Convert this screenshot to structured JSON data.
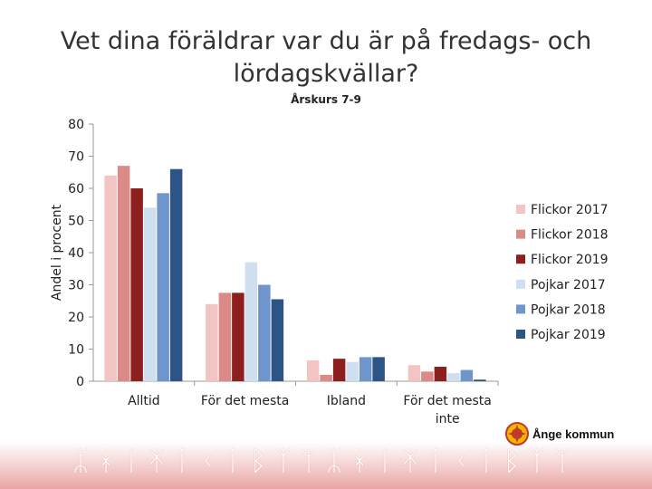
{
  "chart_data": {
    "type": "bar",
    "title": "Vet dina föräldrar var du är på fredags- och lördagskvällar?",
    "subtitle": "Årskurs 7-9",
    "ylabel": "Andel i procent",
    "xlabel": "",
    "ylim": [
      0,
      80
    ],
    "yticks": [
      0,
      10,
      20,
      30,
      40,
      50,
      60,
      70,
      80
    ],
    "categories": [
      "Alltid",
      "För det mesta",
      "Ibland",
      "För det mesta inte"
    ],
    "series": [
      {
        "name": "Flickor 2017",
        "color": "#f2c4c4",
        "values": [
          64,
          24,
          6.5,
          5
        ]
      },
      {
        "name": "Flickor 2018",
        "color": "#dc8a86",
        "values": [
          67,
          27.5,
          2,
          3
        ]
      },
      {
        "name": "Flickor 2019",
        "color": "#8e1f1f",
        "values": [
          60,
          27.5,
          7,
          4.5
        ]
      },
      {
        "name": "Pojkar 2017",
        "color": "#cfdff0",
        "values": [
          54,
          37,
          6,
          2.5
        ]
      },
      {
        "name": "Pojkar 2018",
        "color": "#6f96cc",
        "values": [
          58.5,
          30,
          7.5,
          3.5
        ]
      },
      {
        "name": "Pojkar 2019",
        "color": "#2c5486",
        "values": [
          66,
          25.5,
          7.5,
          0.5
        ]
      }
    ],
    "legend_position": "right",
    "grid": false
  },
  "logo": {
    "name": "Ånge kommun"
  },
  "footer": {
    "runes": "ᛯᚼᛁᛡᛏᚲᛏᛒᛉᛘᛯᚼᛁᛡᛏᚲᛏᛒᛉᛘ"
  }
}
